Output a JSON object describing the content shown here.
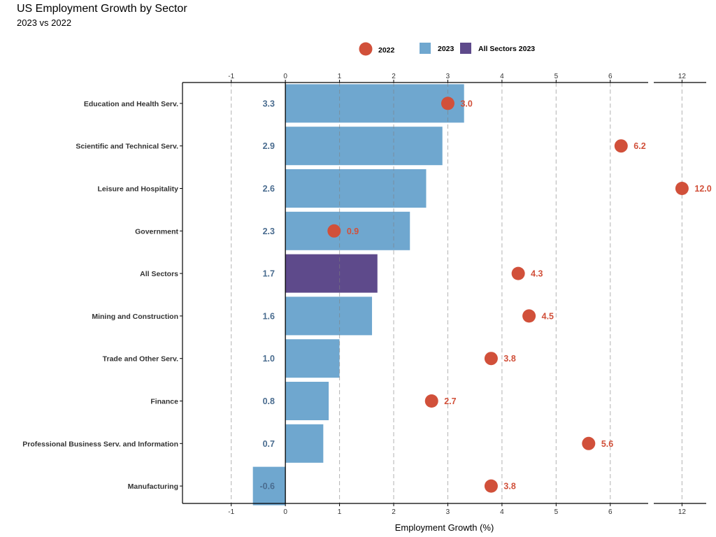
{
  "chart_data": {
    "type": "bar",
    "title": "US Employment Growth by Sector",
    "subtitle": "2023 vs 2022",
    "xlabel": "Employment Growth (%)",
    "ylabel": "",
    "orientation": "horizontal",
    "categories": [
      "Education and Health Serv.",
      "Scientific and Technical Serv.",
      "Leisure and Hospitality",
      "Government",
      "All Sectors",
      "Mining and Construction",
      "Trade and Other Serv.",
      "Finance",
      "Professional Business Serv. and Information",
      "Manufacturing"
    ],
    "series": [
      {
        "name": "2023",
        "chart_type": "bar",
        "color": "#6fa7cf",
        "values": [
          3.3,
          2.9,
          2.6,
          2.3,
          1.7,
          1.6,
          1.0,
          0.8,
          0.7,
          -0.6
        ],
        "labels": [
          "3.3",
          "2.9",
          "2.6",
          "2.3",
          "1.7",
          "1.6",
          "1.0",
          "0.8",
          "0.7",
          "-0.6"
        ]
      },
      {
        "name": "2022",
        "chart_type": "point",
        "color": "#d1503a",
        "values": [
          3.0,
          6.2,
          12.0,
          0.9,
          4.3,
          4.5,
          3.8,
          2.7,
          5.6,
          3.8
        ],
        "labels": [
          "3.0",
          "6.2",
          "12.0",
          "0.9",
          "4.3",
          "4.5",
          "3.8",
          "2.7",
          "5.6",
          "3.8"
        ]
      }
    ],
    "highlight": {
      "category": "All Sectors",
      "name": "All Sectors 2023",
      "color": "#5e4a8b"
    },
    "x_axis_main": {
      "range": [
        -1.9,
        6.7
      ],
      "ticks": [
        "-1",
        "0",
        "1",
        "2",
        "3",
        "4",
        "5",
        "6"
      ],
      "tick_values": [
        -1,
        0,
        1,
        2,
        3,
        4,
        5,
        6
      ]
    },
    "x_axis_broken": {
      "range": [
        11.3,
        12.6
      ],
      "ticks": [
        "12"
      ],
      "tick_values": [
        12
      ]
    },
    "legend": {
      "position": "top-center",
      "items": [
        {
          "label": "2022",
          "shape": "circle",
          "color": "#d1503a"
        },
        {
          "label": "2023",
          "shape": "square",
          "color": "#6fa7cf"
        },
        {
          "label": "All Sectors 2023",
          "shape": "square",
          "color": "#5e4a8b"
        }
      ]
    },
    "grid": "vertical dashed"
  }
}
